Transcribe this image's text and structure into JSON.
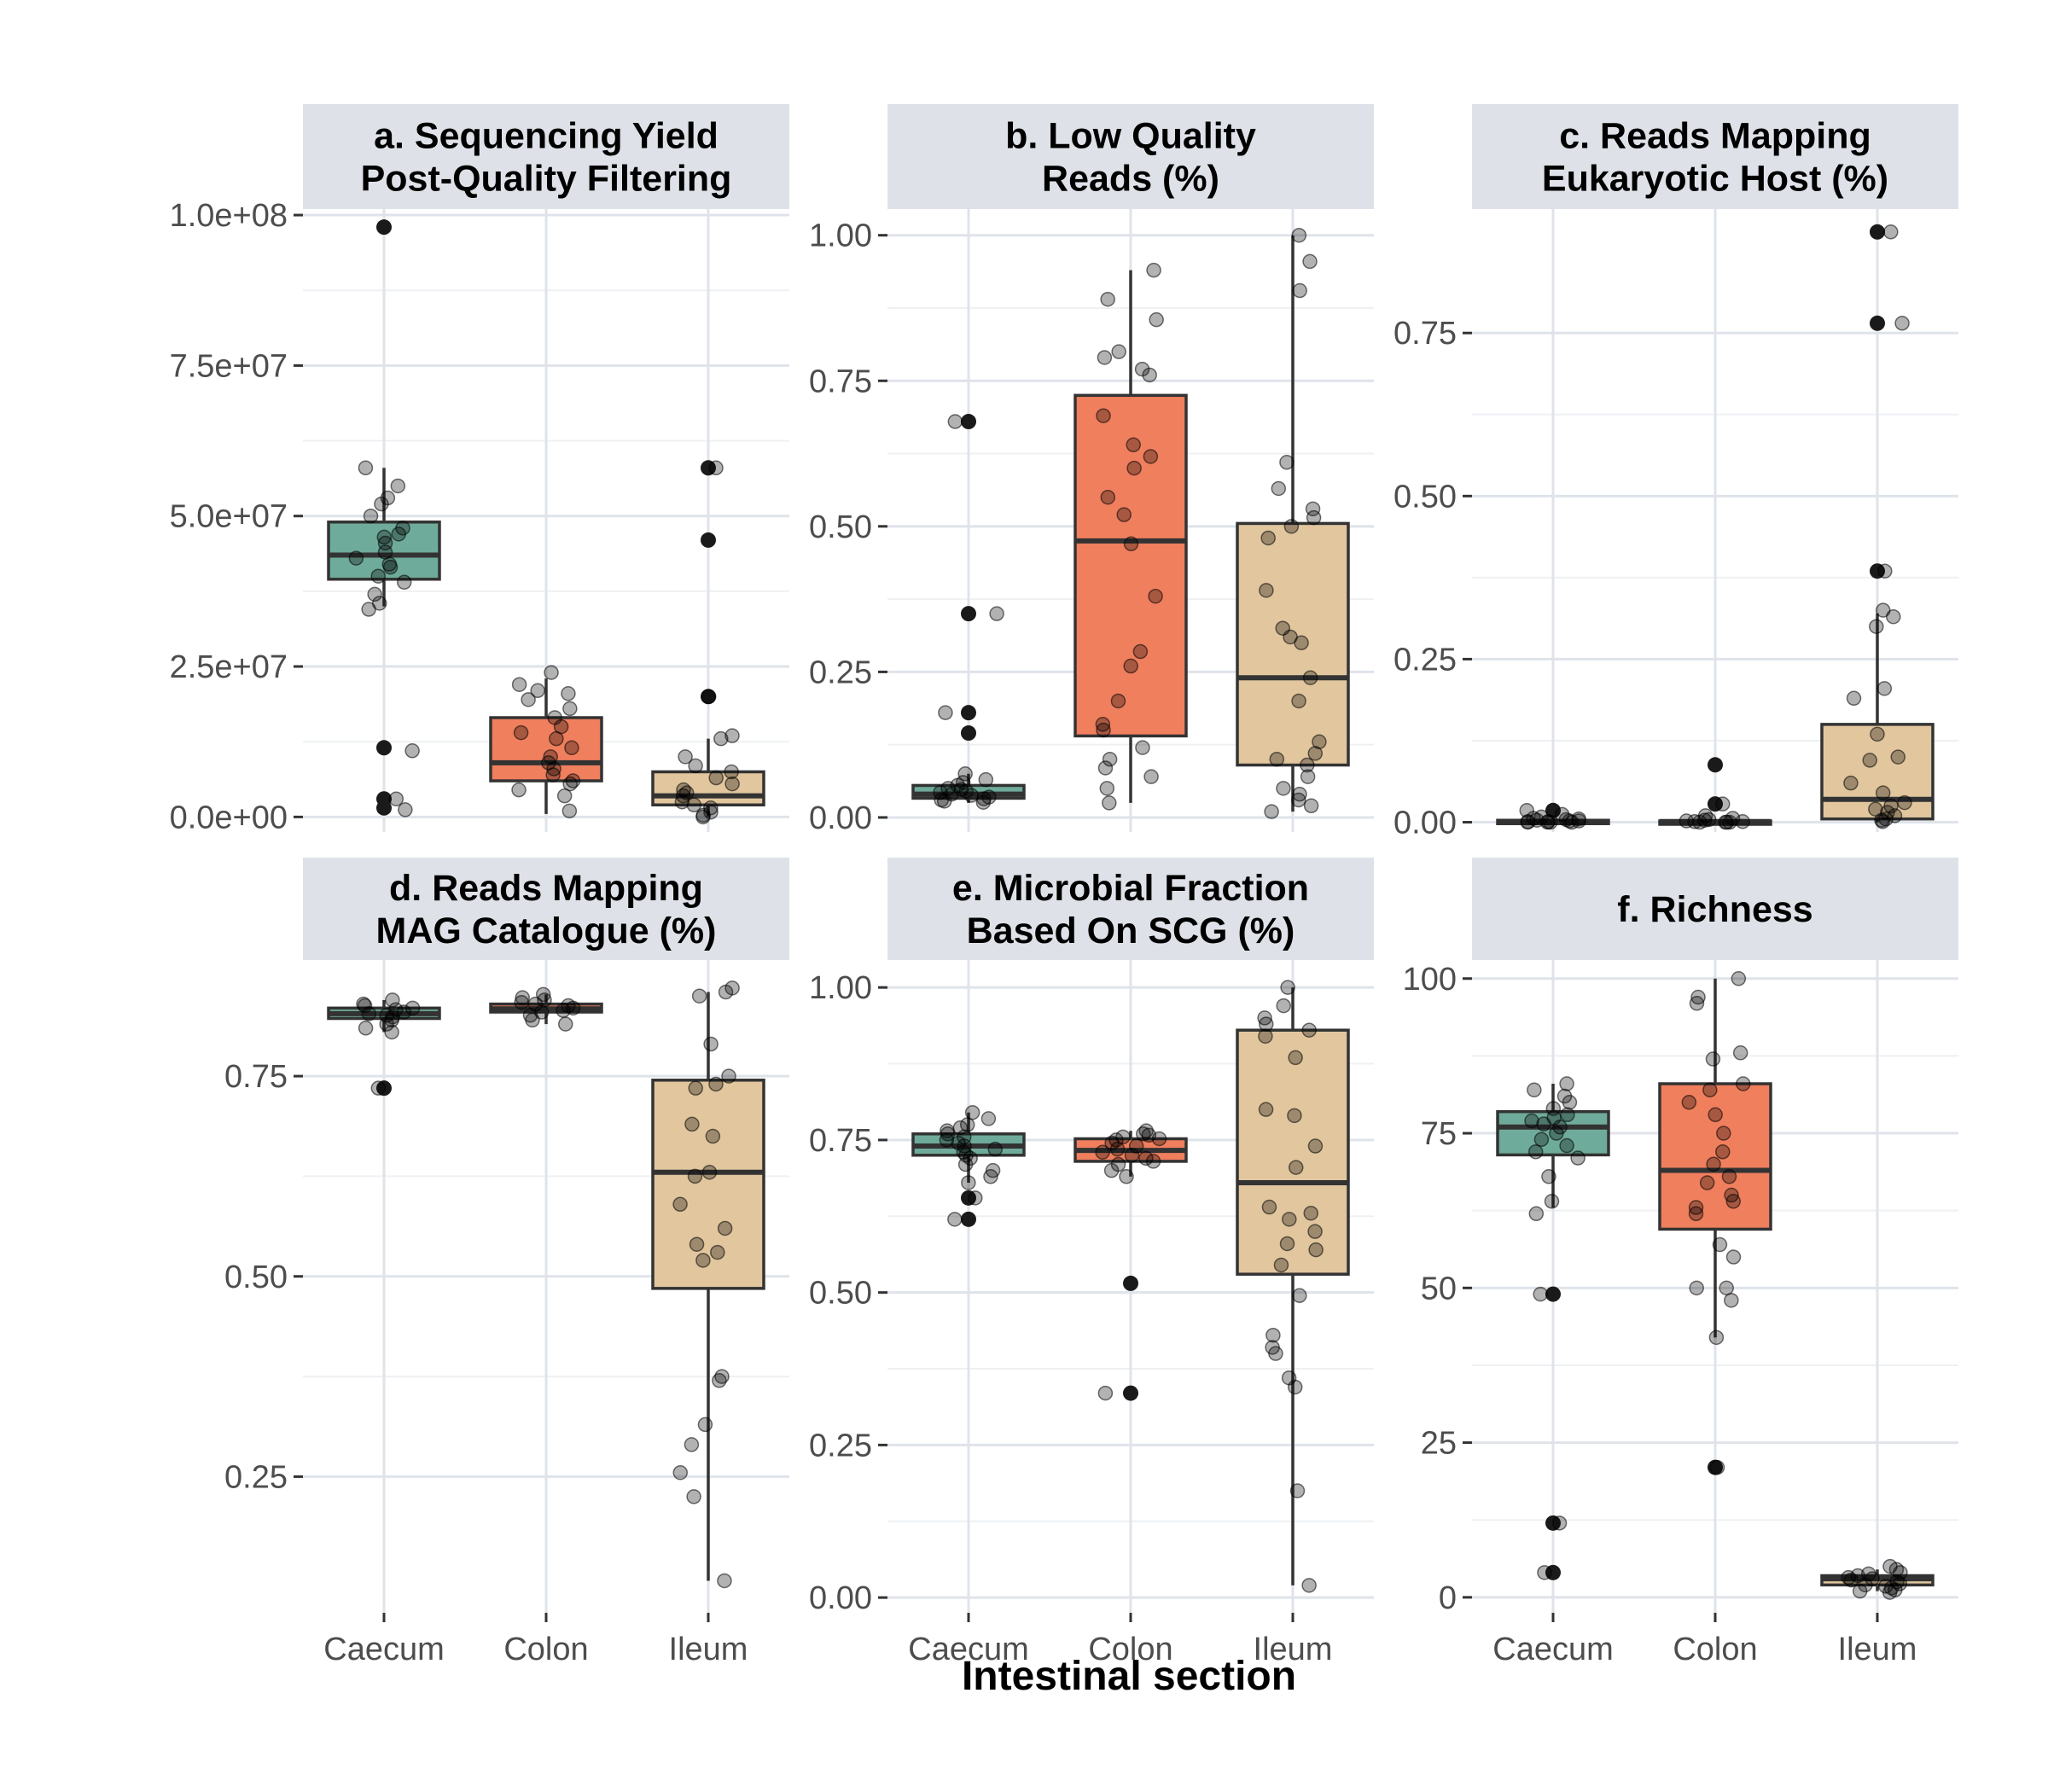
{
  "colors": {
    "Caecum": "#6fab9a",
    "Colon": "#f07f5e",
    "Ileum": "#e1c69e",
    "strip": "#dee2e8",
    "grid": "#dfe3ea"
  },
  "chart_data": {
    "type": "box",
    "xlabel": "Intestinal section",
    "categories": [
      "Caecum",
      "Colon",
      "Ileum"
    ],
    "panels": [
      {
        "title": "a. Sequencing Yield\nPost-Quality Filtering",
        "ylim": [
          -2500000,
          101000000
        ],
        "ticks": [
          0,
          25000000,
          50000000,
          75000000,
          100000000
        ],
        "tick_labels": [
          "0.0e+00",
          "2.5e+07",
          "5.0e+07",
          "7.5e+07",
          "1.0e+08"
        ],
        "boxes": {
          "Caecum": {
            "q1": 39500000,
            "median": 43500000,
            "q3": 49000000,
            "whisker_low": 35000000,
            "whisker_high": 58000000
          },
          "Colon": {
            "q1": 6000000,
            "median": 9000000,
            "q3": 16500000,
            "whisker_low": 500000,
            "whisker_high": 23000000
          },
          "Ileum": {
            "q1": 2000000,
            "median": 3500000,
            "q3": 7500000,
            "whisker_low": 0,
            "whisker_high": 13000000
          }
        },
        "outliers": {
          "Caecum": [
            98000000,
            11500000,
            3000000,
            1500000
          ],
          "Colon": [],
          "Ileum": [
            58000000,
            46000000,
            20000000
          ]
        },
        "points": {
          "Caecum": [
            58000000,
            55000000,
            53000000,
            52000000,
            50000000,
            48000000,
            47000000,
            46500000,
            45500000,
            44000000,
            43000000,
            42000000,
            41500000,
            40000000,
            39000000,
            37000000,
            35500000,
            34500000,
            11000000,
            3000000,
            1200000
          ],
          "Colon": [
            24000000,
            22000000,
            21000000,
            20500000,
            19500000,
            18000000,
            16500000,
            15000000,
            14000000,
            13000000,
            11500000,
            10000000,
            9000000,
            8000000,
            7000000,
            6000000,
            5500000,
            4500000,
            3500000,
            1000000
          ],
          "Ileum": [
            58000000,
            20000000,
            13500000,
            13000000,
            10000000,
            8500000,
            7500000,
            6500000,
            5500000,
            4500000,
            4000000,
            3500000,
            2500000,
            2000000,
            1500000,
            800000,
            300000,
            0
          ]
        }
      },
      {
        "title": "b. Low Quality\nReads (%)",
        "ylim": [
          -0.025,
          1.045
        ],
        "ticks": [
          0,
          0.25,
          0.5,
          0.75,
          1.0
        ],
        "tick_labels": [
          "0.00",
          "0.25",
          "0.50",
          "0.75",
          "1.00"
        ],
        "boxes": {
          "Caecum": {
            "q1": 0.033,
            "median": 0.04,
            "q3": 0.055,
            "whisker_low": 0.025,
            "whisker_high": 0.075
          },
          "Colon": {
            "q1": 0.14,
            "median": 0.475,
            "q3": 0.725,
            "whisker_low": 0.025,
            "whisker_high": 0.94
          },
          "Ileum": {
            "q1": 0.09,
            "median": 0.24,
            "q3": 0.505,
            "whisker_low": 0.01,
            "whisker_high": 1.0
          }
        },
        "outliers": {
          "Caecum": [
            0.68,
            0.35,
            0.18,
            0.145
          ],
          "Colon": [],
          "Ileum": []
        },
        "points": {
          "Caecum": [
            0.68,
            0.35,
            0.18,
            0.075,
            0.065,
            0.06,
            0.055,
            0.05,
            0.048,
            0.045,
            0.043,
            0.04,
            0.038,
            0.035,
            0.032,
            0.03,
            0.028,
            0.026
          ],
          "Colon": [
            0.94,
            0.89,
            0.855,
            0.8,
            0.79,
            0.77,
            0.76,
            0.69,
            0.64,
            0.62,
            0.6,
            0.55,
            0.52,
            0.47,
            0.38,
            0.285,
            0.26,
            0.2,
            0.16,
            0.15,
            0.12,
            0.1,
            0.085,
            0.07,
            0.05,
            0.025
          ],
          "Ileum": [
            1.0,
            0.955,
            0.905,
            0.61,
            0.565,
            0.53,
            0.515,
            0.5,
            0.48,
            0.39,
            0.325,
            0.31,
            0.3,
            0.24,
            0.2,
            0.13,
            0.11,
            0.1,
            0.09,
            0.07,
            0.05,
            0.04,
            0.03,
            0.02,
            0.01
          ]
        }
      },
      {
        "title": "c. Reads Mapping\nEukaryotic Host (%)",
        "ylim": [
          -0.015,
          0.94
        ],
        "ticks": [
          0,
          0.25,
          0.5,
          0.75
        ],
        "tick_labels": [
          "0.00",
          "0.25",
          "0.50",
          "0.75"
        ],
        "boxes": {
          "Caecum": {
            "q1": 0,
            "median": 0.001,
            "q3": 0.003,
            "whisker_low": 0,
            "whisker_high": 0.006
          },
          "Colon": {
            "q1": 0,
            "median": 0.001,
            "q3": 0.002,
            "whisker_low": 0,
            "whisker_high": 0.004
          },
          "Ileum": {
            "q1": 0.005,
            "median": 0.035,
            "q3": 0.15,
            "whisker_low": 0,
            "whisker_high": 0.32
          }
        },
        "outliers": {
          "Caecum": [
            0.018
          ],
          "Colon": [
            0.088,
            0.028
          ],
          "Ileum": [
            0.905,
            0.765,
            0.385
          ]
        },
        "points": {
          "Caecum": [
            0.018,
            0.012,
            0.008,
            0.006,
            0.005,
            0.004,
            0.003,
            0.002,
            0.002,
            0.001,
            0.001,
            0.0,
            0.0,
            0.0,
            0.0
          ],
          "Colon": [
            0.028,
            0.01,
            0.006,
            0.004,
            0.003,
            0.002,
            0.001,
            0.001,
            0.0,
            0.0,
            0.0,
            0.0
          ],
          "Ileum": [
            0.905,
            0.765,
            0.385,
            0.325,
            0.315,
            0.3,
            0.205,
            0.19,
            0.135,
            0.1,
            0.095,
            0.06,
            0.045,
            0.03,
            0.025,
            0.02,
            0.015,
            0.01,
            0.005,
            0.003,
            0.001
          ]
        }
      },
      {
        "title": "d. Reads Mapping\nMAG Catalogue (%)",
        "ylim": [
          0.08,
          0.895
        ],
        "ticks": [
          0.25,
          0.5,
          0.75
        ],
        "tick_labels": [
          "0.25",
          "0.50",
          "0.75"
        ],
        "boxes": {
          "Caecum": {
            "q1": 0.822,
            "median": 0.828,
            "q3": 0.835,
            "whisker_low": 0.805,
            "whisker_high": 0.845
          },
          "Colon": {
            "q1": 0.83,
            "median": 0.834,
            "q3": 0.84,
            "whisker_low": 0.815,
            "whisker_high": 0.852
          },
          "Ileum": {
            "q1": 0.485,
            "median": 0.63,
            "q3": 0.745,
            "whisker_low": 0.12,
            "whisker_high": 0.855
          }
        },
        "outliers": {
          "Caecum": [
            0.735
          ],
          "Colon": [],
          "Ileum": []
        },
        "points": {
          "Caecum": [
            0.845,
            0.84,
            0.838,
            0.835,
            0.833,
            0.83,
            0.828,
            0.826,
            0.824,
            0.82,
            0.815,
            0.81,
            0.805,
            0.735
          ],
          "Colon": [
            0.852,
            0.848,
            0.845,
            0.842,
            0.84,
            0.838,
            0.835,
            0.832,
            0.83,
            0.826,
            0.82,
            0.815
          ],
          "Ileum": [
            0.86,
            0.855,
            0.85,
            0.79,
            0.75,
            0.74,
            0.735,
            0.69,
            0.675,
            0.63,
            0.625,
            0.59,
            0.56,
            0.54,
            0.53,
            0.52,
            0.375,
            0.37,
            0.315,
            0.29,
            0.255,
            0.225,
            0.12
          ]
        }
      },
      {
        "title": "e. Microbial Fraction\nBased On SCG (%)",
        "ylim": [
          -0.025,
          1.045
        ],
        "ticks": [
          0,
          0.25,
          0.5,
          0.75,
          1.0
        ],
        "tick_labels": [
          "0.00",
          "0.25",
          "0.50",
          "0.75",
          "1.00"
        ],
        "boxes": {
          "Caecum": {
            "q1": 0.725,
            "median": 0.74,
            "q3": 0.76,
            "whisker_low": 0.68,
            "whisker_high": 0.795
          },
          "Colon": {
            "q1": 0.715,
            "median": 0.733,
            "q3": 0.752,
            "whisker_low": 0.69,
            "whisker_high": 0.765
          },
          "Ileum": {
            "q1": 0.53,
            "median": 0.68,
            "q3": 0.93,
            "whisker_low": 0.02,
            "whisker_high": 1.0
          }
        },
        "outliers": {
          "Caecum": [
            0.655,
            0.62
          ],
          "Colon": [
            0.515,
            0.335
          ],
          "Ileum": []
        },
        "points": {
          "Caecum": [
            0.795,
            0.785,
            0.775,
            0.77,
            0.765,
            0.76,
            0.755,
            0.75,
            0.745,
            0.74,
            0.735,
            0.73,
            0.725,
            0.72,
            0.71,
            0.7,
            0.69,
            0.68,
            0.655,
            0.62
          ],
          "Colon": [
            0.765,
            0.76,
            0.758,
            0.755,
            0.752,
            0.75,
            0.745,
            0.74,
            0.735,
            0.73,
            0.725,
            0.72,
            0.715,
            0.71,
            0.7,
            0.69,
            0.335
          ],
          "Ileum": [
            1.0,
            0.97,
            0.95,
            0.94,
            0.93,
            0.92,
            0.885,
            0.8,
            0.79,
            0.74,
            0.705,
            0.64,
            0.63,
            0.62,
            0.6,
            0.58,
            0.57,
            0.545,
            0.495,
            0.43,
            0.41,
            0.4,
            0.36,
            0.345,
            0.175,
            0.02
          ]
        }
      },
      {
        "title": "f. Richness",
        "ylim": [
          -2.5,
          103
        ],
        "ticks": [
          0,
          25,
          50,
          75,
          100
        ],
        "tick_labels": [
          "0",
          "25",
          "50",
          "75",
          "100"
        ],
        "boxes": {
          "Caecum": {
            "q1": 71.5,
            "median": 76,
            "q3": 78.5,
            "whisker_low": 63,
            "whisker_high": 83
          },
          "Colon": {
            "q1": 59.5,
            "median": 69,
            "q3": 83,
            "whisker_low": 42,
            "whisker_high": 100
          },
          "Ileum": {
            "q1": 2,
            "median": 3,
            "q3": 3.5,
            "whisker_low": 1,
            "whisker_high": 4.5
          }
        },
        "outliers": {
          "Caecum": [
            49,
            12,
            4
          ],
          "Colon": [
            21
          ],
          "Ileum": []
        },
        "points": {
          "Caecum": [
            83,
            82,
            81,
            80,
            79,
            78,
            77.5,
            77,
            76.5,
            76,
            75,
            74,
            73,
            72,
            71,
            68,
            64,
            62,
            49,
            12,
            4
          ],
          "Colon": [
            100,
            97,
            96,
            88,
            87,
            83,
            82,
            80,
            78,
            75,
            72,
            70,
            68,
            67,
            65,
            64,
            63,
            62,
            57,
            55,
            50,
            50,
            48,
            42,
            21
          ],
          "Ileum": [
            5,
            4.5,
            4,
            3.8,
            3.5,
            3.2,
            3,
            2.8,
            2.5,
            2.2,
            2,
            1.8,
            1.5,
            1.2,
            1,
            0.8
          ]
        }
      }
    ]
  }
}
